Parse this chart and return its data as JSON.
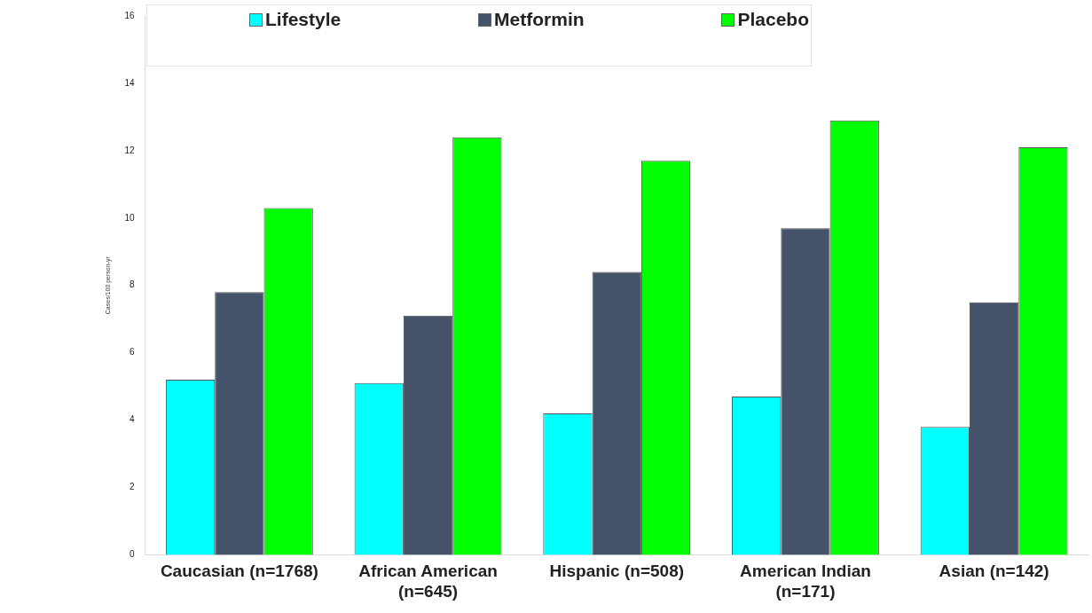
{
  "chart_data": {
    "type": "bar",
    "ylabel": "Cases/100 person-yr",
    "categories": [
      "Caucasian (n=1768)",
      "African American (n=645)",
      "Hispanic (n=508)",
      "American Indian (n=171)",
      "Asian (n=142)"
    ],
    "series": [
      {
        "name": "Lifestyle",
        "color": "#00ffff",
        "values": [
          5.2,
          5.1,
          4.2,
          4.7,
          3.8
        ]
      },
      {
        "name": "Metformin",
        "color": "#44526a",
        "values": [
          7.8,
          7.1,
          8.4,
          9.7,
          7.5
        ]
      },
      {
        "name": "Placebo",
        "color": "#00ff00",
        "values": [
          10.3,
          12.4,
          11.7,
          12.9,
          12.1
        ]
      }
    ],
    "ylim": [
      0,
      16
    ],
    "yticks": [
      0,
      2,
      4,
      6,
      8,
      10,
      12,
      14,
      16
    ],
    "grid": false,
    "legend": "top"
  }
}
